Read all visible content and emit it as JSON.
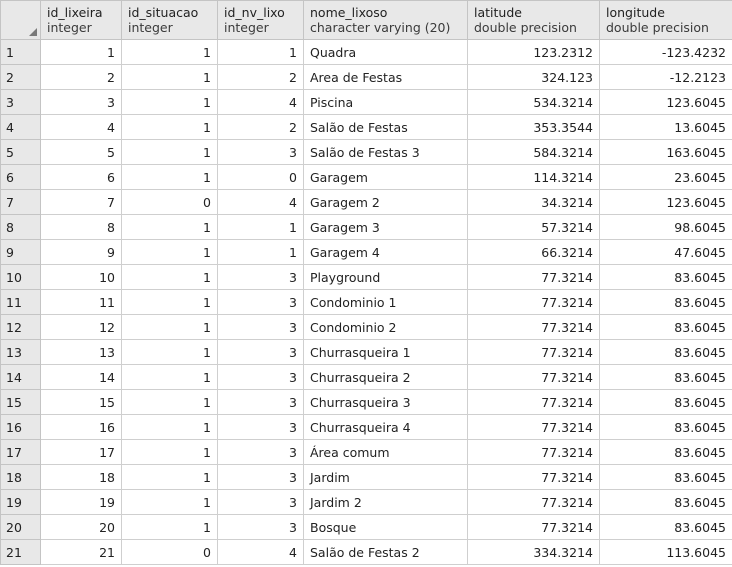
{
  "columns": [
    {
      "name": "id_lixeira",
      "type": "integer"
    },
    {
      "name": "id_situacao",
      "type": "integer"
    },
    {
      "name": "id_nv_lixo",
      "type": "integer"
    },
    {
      "name": "nome_lixoso",
      "type": "character varying (20)"
    },
    {
      "name": "latitude",
      "type": "double precision"
    },
    {
      "name": "longitude",
      "type": "double precision"
    }
  ],
  "rows": [
    {
      "n": "1",
      "cells": [
        "1",
        "1",
        "1",
        "Quadra",
        "123.2312",
        "-123.4232"
      ]
    },
    {
      "n": "2",
      "cells": [
        "2",
        "1",
        "2",
        "Area de Festas",
        "324.123",
        "-12.2123"
      ]
    },
    {
      "n": "3",
      "cells": [
        "3",
        "1",
        "4",
        "Piscina",
        "534.3214",
        "123.6045"
      ]
    },
    {
      "n": "4",
      "cells": [
        "4",
        "1",
        "2",
        "Salão de Festas",
        "353.3544",
        "13.6045"
      ]
    },
    {
      "n": "5",
      "cells": [
        "5",
        "1",
        "3",
        "Salão de Festas 3",
        "584.3214",
        "163.6045"
      ]
    },
    {
      "n": "6",
      "cells": [
        "6",
        "1",
        "0",
        "Garagem",
        "114.3214",
        "23.6045"
      ]
    },
    {
      "n": "7",
      "cells": [
        "7",
        "0",
        "4",
        "Garagem 2",
        "34.3214",
        "123.6045"
      ]
    },
    {
      "n": "8",
      "cells": [
        "8",
        "1",
        "1",
        "Garagem 3",
        "57.3214",
        "98.6045"
      ]
    },
    {
      "n": "9",
      "cells": [
        "9",
        "1",
        "1",
        "Garagem 4",
        "66.3214",
        "47.6045"
      ]
    },
    {
      "n": "10",
      "cells": [
        "10",
        "1",
        "3",
        "Playground",
        "77.3214",
        "83.6045"
      ]
    },
    {
      "n": "11",
      "cells": [
        "11",
        "1",
        "3",
        "Condominio 1",
        "77.3214",
        "83.6045"
      ]
    },
    {
      "n": "12",
      "cells": [
        "12",
        "1",
        "3",
        "Condominio 2",
        "77.3214",
        "83.6045"
      ]
    },
    {
      "n": "13",
      "cells": [
        "13",
        "1",
        "3",
        "Churrasqueira 1",
        "77.3214",
        "83.6045"
      ]
    },
    {
      "n": "14",
      "cells": [
        "14",
        "1",
        "3",
        "Churrasqueira 2",
        "77.3214",
        "83.6045"
      ]
    },
    {
      "n": "15",
      "cells": [
        "15",
        "1",
        "3",
        "Churrasqueira 3",
        "77.3214",
        "83.6045"
      ]
    },
    {
      "n": "16",
      "cells": [
        "16",
        "1",
        "3",
        "Churrasqueira 4",
        "77.3214",
        "83.6045"
      ]
    },
    {
      "n": "17",
      "cells": [
        "17",
        "1",
        "3",
        "Área comum",
        "77.3214",
        "83.6045"
      ]
    },
    {
      "n": "18",
      "cells": [
        "18",
        "1",
        "3",
        "Jardim",
        "77.3214",
        "83.6045"
      ]
    },
    {
      "n": "19",
      "cells": [
        "19",
        "1",
        "3",
        "Jardim 2",
        "77.3214",
        "83.6045"
      ]
    },
    {
      "n": "20",
      "cells": [
        "20",
        "1",
        "3",
        "Bosque",
        "77.3214",
        "83.6045"
      ]
    },
    {
      "n": "21",
      "cells": [
        "21",
        "0",
        "4",
        "Salão de Festas 2",
        "334.3214",
        "113.6045"
      ]
    }
  ]
}
